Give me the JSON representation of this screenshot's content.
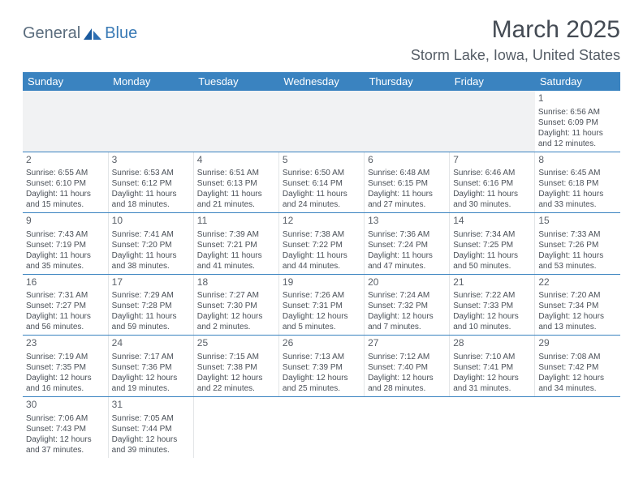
{
  "logo": {
    "text1": "General",
    "text2": "Blue"
  },
  "title": "March 2025",
  "location": "Storm Lake, Iowa, United States",
  "dayHeaders": [
    "Sunday",
    "Monday",
    "Tuesday",
    "Wednesday",
    "Thursday",
    "Friday",
    "Saturday"
  ],
  "colors": {
    "header_bg": "#3a83c0",
    "header_text": "#ffffff",
    "border": "#3a83c0",
    "cell_border": "#e3e6e8",
    "empty_bg": "#f1f2f3",
    "text": "#4a5058",
    "title_color": "#444b54",
    "location_color": "#555d66",
    "logo_primary": "#5a6c7d",
    "logo_secondary": "#3a7ab5"
  },
  "weeks": [
    [
      {
        "empty": true
      },
      {
        "empty": true
      },
      {
        "empty": true
      },
      {
        "empty": true
      },
      {
        "empty": true
      },
      {
        "empty": true
      },
      {
        "day": "1",
        "sunrise": "Sunrise: 6:56 AM",
        "sunset": "Sunset: 6:09 PM",
        "daylight1": "Daylight: 11 hours",
        "daylight2": "and 12 minutes."
      }
    ],
    [
      {
        "day": "2",
        "sunrise": "Sunrise: 6:55 AM",
        "sunset": "Sunset: 6:10 PM",
        "daylight1": "Daylight: 11 hours",
        "daylight2": "and 15 minutes."
      },
      {
        "day": "3",
        "sunrise": "Sunrise: 6:53 AM",
        "sunset": "Sunset: 6:12 PM",
        "daylight1": "Daylight: 11 hours",
        "daylight2": "and 18 minutes."
      },
      {
        "day": "4",
        "sunrise": "Sunrise: 6:51 AM",
        "sunset": "Sunset: 6:13 PM",
        "daylight1": "Daylight: 11 hours",
        "daylight2": "and 21 minutes."
      },
      {
        "day": "5",
        "sunrise": "Sunrise: 6:50 AM",
        "sunset": "Sunset: 6:14 PM",
        "daylight1": "Daylight: 11 hours",
        "daylight2": "and 24 minutes."
      },
      {
        "day": "6",
        "sunrise": "Sunrise: 6:48 AM",
        "sunset": "Sunset: 6:15 PM",
        "daylight1": "Daylight: 11 hours",
        "daylight2": "and 27 minutes."
      },
      {
        "day": "7",
        "sunrise": "Sunrise: 6:46 AM",
        "sunset": "Sunset: 6:16 PM",
        "daylight1": "Daylight: 11 hours",
        "daylight2": "and 30 minutes."
      },
      {
        "day": "8",
        "sunrise": "Sunrise: 6:45 AM",
        "sunset": "Sunset: 6:18 PM",
        "daylight1": "Daylight: 11 hours",
        "daylight2": "and 33 minutes."
      }
    ],
    [
      {
        "day": "9",
        "sunrise": "Sunrise: 7:43 AM",
        "sunset": "Sunset: 7:19 PM",
        "daylight1": "Daylight: 11 hours",
        "daylight2": "and 35 minutes."
      },
      {
        "day": "10",
        "sunrise": "Sunrise: 7:41 AM",
        "sunset": "Sunset: 7:20 PM",
        "daylight1": "Daylight: 11 hours",
        "daylight2": "and 38 minutes."
      },
      {
        "day": "11",
        "sunrise": "Sunrise: 7:39 AM",
        "sunset": "Sunset: 7:21 PM",
        "daylight1": "Daylight: 11 hours",
        "daylight2": "and 41 minutes."
      },
      {
        "day": "12",
        "sunrise": "Sunrise: 7:38 AM",
        "sunset": "Sunset: 7:22 PM",
        "daylight1": "Daylight: 11 hours",
        "daylight2": "and 44 minutes."
      },
      {
        "day": "13",
        "sunrise": "Sunrise: 7:36 AM",
        "sunset": "Sunset: 7:24 PM",
        "daylight1": "Daylight: 11 hours",
        "daylight2": "and 47 minutes."
      },
      {
        "day": "14",
        "sunrise": "Sunrise: 7:34 AM",
        "sunset": "Sunset: 7:25 PM",
        "daylight1": "Daylight: 11 hours",
        "daylight2": "and 50 minutes."
      },
      {
        "day": "15",
        "sunrise": "Sunrise: 7:33 AM",
        "sunset": "Sunset: 7:26 PM",
        "daylight1": "Daylight: 11 hours",
        "daylight2": "and 53 minutes."
      }
    ],
    [
      {
        "day": "16",
        "sunrise": "Sunrise: 7:31 AM",
        "sunset": "Sunset: 7:27 PM",
        "daylight1": "Daylight: 11 hours",
        "daylight2": "and 56 minutes."
      },
      {
        "day": "17",
        "sunrise": "Sunrise: 7:29 AM",
        "sunset": "Sunset: 7:28 PM",
        "daylight1": "Daylight: 11 hours",
        "daylight2": "and 59 minutes."
      },
      {
        "day": "18",
        "sunrise": "Sunrise: 7:27 AM",
        "sunset": "Sunset: 7:30 PM",
        "daylight1": "Daylight: 12 hours",
        "daylight2": "and 2 minutes."
      },
      {
        "day": "19",
        "sunrise": "Sunrise: 7:26 AM",
        "sunset": "Sunset: 7:31 PM",
        "daylight1": "Daylight: 12 hours",
        "daylight2": "and 5 minutes."
      },
      {
        "day": "20",
        "sunrise": "Sunrise: 7:24 AM",
        "sunset": "Sunset: 7:32 PM",
        "daylight1": "Daylight: 12 hours",
        "daylight2": "and 7 minutes."
      },
      {
        "day": "21",
        "sunrise": "Sunrise: 7:22 AM",
        "sunset": "Sunset: 7:33 PM",
        "daylight1": "Daylight: 12 hours",
        "daylight2": "and 10 minutes."
      },
      {
        "day": "22",
        "sunrise": "Sunrise: 7:20 AM",
        "sunset": "Sunset: 7:34 PM",
        "daylight1": "Daylight: 12 hours",
        "daylight2": "and 13 minutes."
      }
    ],
    [
      {
        "day": "23",
        "sunrise": "Sunrise: 7:19 AM",
        "sunset": "Sunset: 7:35 PM",
        "daylight1": "Daylight: 12 hours",
        "daylight2": "and 16 minutes."
      },
      {
        "day": "24",
        "sunrise": "Sunrise: 7:17 AM",
        "sunset": "Sunset: 7:36 PM",
        "daylight1": "Daylight: 12 hours",
        "daylight2": "and 19 minutes."
      },
      {
        "day": "25",
        "sunrise": "Sunrise: 7:15 AM",
        "sunset": "Sunset: 7:38 PM",
        "daylight1": "Daylight: 12 hours",
        "daylight2": "and 22 minutes."
      },
      {
        "day": "26",
        "sunrise": "Sunrise: 7:13 AM",
        "sunset": "Sunset: 7:39 PM",
        "daylight1": "Daylight: 12 hours",
        "daylight2": "and 25 minutes."
      },
      {
        "day": "27",
        "sunrise": "Sunrise: 7:12 AM",
        "sunset": "Sunset: 7:40 PM",
        "daylight1": "Daylight: 12 hours",
        "daylight2": "and 28 minutes."
      },
      {
        "day": "28",
        "sunrise": "Sunrise: 7:10 AM",
        "sunset": "Sunset: 7:41 PM",
        "daylight1": "Daylight: 12 hours",
        "daylight2": "and 31 minutes."
      },
      {
        "day": "29",
        "sunrise": "Sunrise: 7:08 AM",
        "sunset": "Sunset: 7:42 PM",
        "daylight1": "Daylight: 12 hours",
        "daylight2": "and 34 minutes."
      }
    ],
    [
      {
        "day": "30",
        "sunrise": "Sunrise: 7:06 AM",
        "sunset": "Sunset: 7:43 PM",
        "daylight1": "Daylight: 12 hours",
        "daylight2": "and 37 minutes."
      },
      {
        "day": "31",
        "sunrise": "Sunrise: 7:05 AM",
        "sunset": "Sunset: 7:44 PM",
        "daylight1": "Daylight: 12 hours",
        "daylight2": "and 39 minutes."
      },
      {
        "empty": true
      },
      {
        "empty": true
      },
      {
        "empty": true
      },
      {
        "empty": true
      },
      {
        "empty": true
      }
    ]
  ]
}
